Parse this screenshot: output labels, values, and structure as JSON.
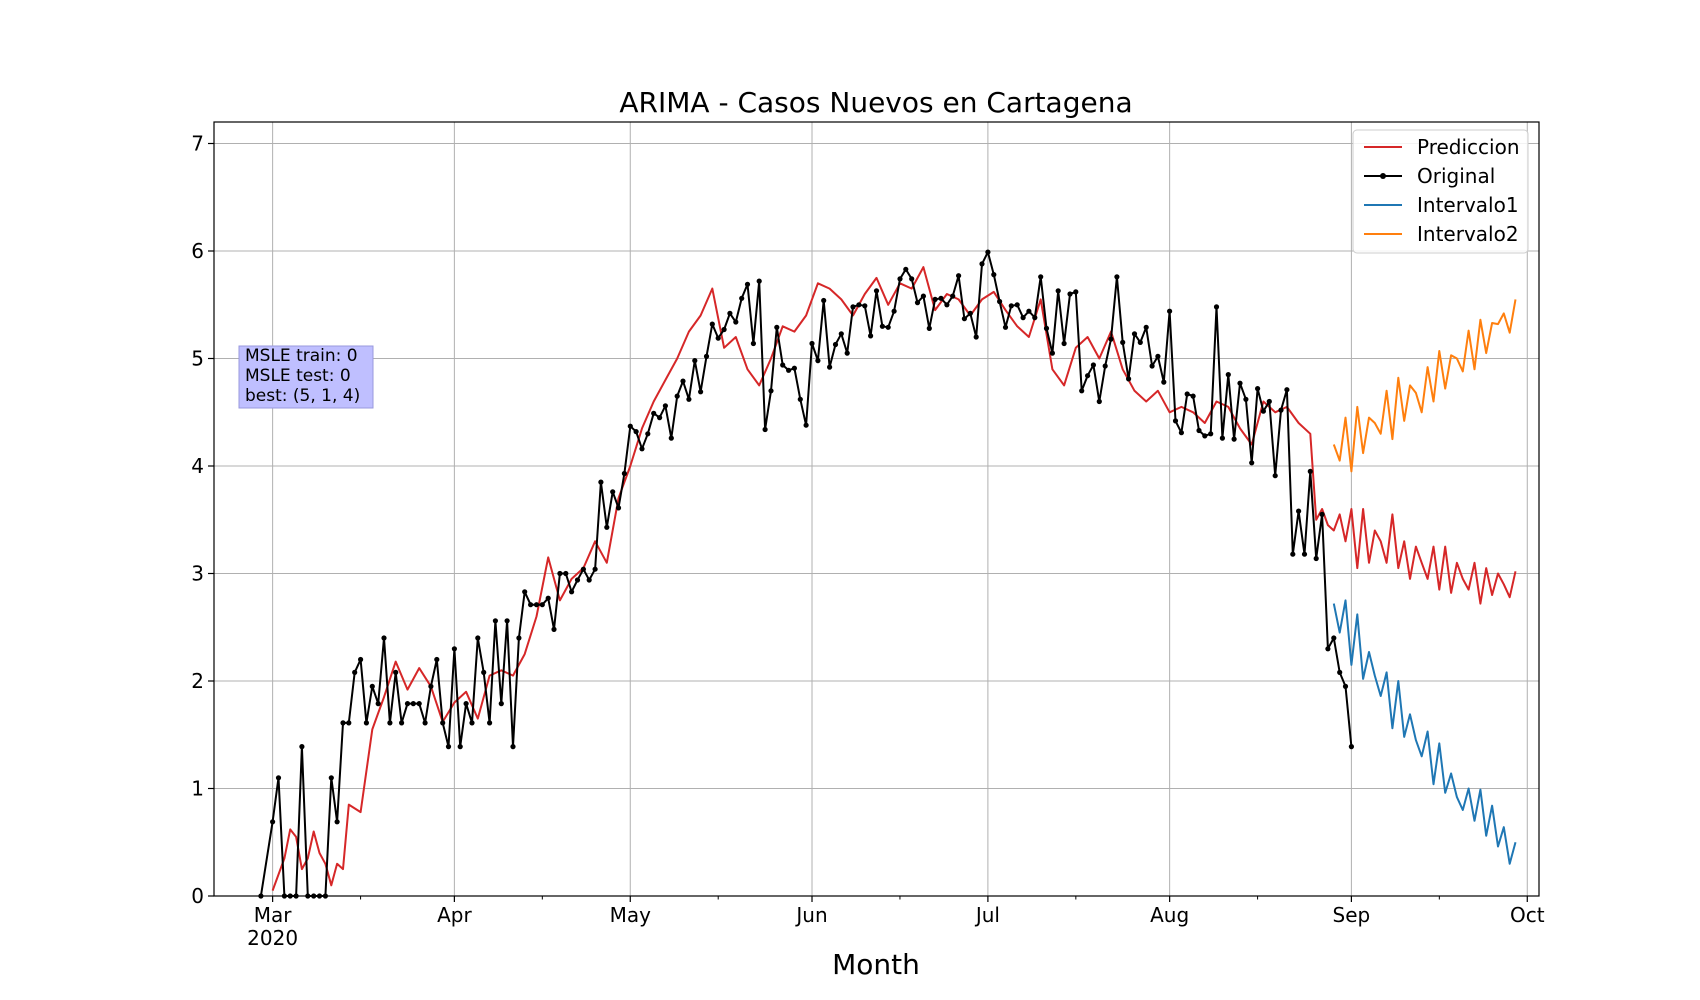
{
  "chart_data": {
    "type": "line",
    "title": "ARIMA - Casos Nuevos en Cartagena",
    "xlabel": "Month",
    "ylabel": "",
    "xlim": [
      "2020-02-20",
      "2020-10-03"
    ],
    "ylim": [
      0,
      7.2
    ],
    "yticks": [
      0,
      1,
      2,
      3,
      4,
      5,
      6,
      7
    ],
    "xticks": [
      {
        "date": "2020-03-01",
        "label": "Mar",
        "sublabel": "2020"
      },
      {
        "date": "2020-04-01",
        "label": "Apr",
        "sublabel": ""
      },
      {
        "date": "2020-05-01",
        "label": "May",
        "sublabel": ""
      },
      {
        "date": "2020-06-01",
        "label": "Jun",
        "sublabel": ""
      },
      {
        "date": "2020-07-01",
        "label": "Jul",
        "sublabel": ""
      },
      {
        "date": "2020-08-01",
        "label": "Aug",
        "sublabel": ""
      },
      {
        "date": "2020-09-01",
        "label": "Sep",
        "sublabel": ""
      },
      {
        "date": "2020-10-01",
        "label": "Oct",
        "sublabel": ""
      }
    ],
    "grid": true,
    "legend_position": "top-right",
    "annotation": {
      "lines": [
        "MSLE train: 0",
        "MSLE test: 0",
        "best: (5, 1, 4)"
      ]
    },
    "series": [
      {
        "name": "Prediccion",
        "color": "#d62728",
        "marker": false,
        "x": [
          "2020-03-01",
          "2020-03-03",
          "2020-03-04",
          "2020-03-05",
          "2020-03-06",
          "2020-03-07",
          "2020-03-08",
          "2020-03-09",
          "2020-03-10",
          "2020-03-11",
          "2020-03-12",
          "2020-03-13",
          "2020-03-14",
          "2020-03-16",
          "2020-03-18",
          "2020-03-20",
          "2020-03-22",
          "2020-03-24",
          "2020-03-26",
          "2020-03-28",
          "2020-03-30",
          "2020-04-01",
          "2020-04-03",
          "2020-04-05",
          "2020-04-07",
          "2020-04-09",
          "2020-04-11",
          "2020-04-13",
          "2020-04-15",
          "2020-04-17",
          "2020-04-19",
          "2020-04-21",
          "2020-04-23",
          "2020-04-25",
          "2020-04-27",
          "2020-04-29",
          "2020-05-01",
          "2020-05-03",
          "2020-05-05",
          "2020-05-07",
          "2020-05-09",
          "2020-05-11",
          "2020-05-13",
          "2020-05-15",
          "2020-05-17",
          "2020-05-19",
          "2020-05-21",
          "2020-05-23",
          "2020-05-25",
          "2020-05-27",
          "2020-05-29",
          "2020-05-31",
          "2020-06-02",
          "2020-06-04",
          "2020-06-06",
          "2020-06-08",
          "2020-06-10",
          "2020-06-12",
          "2020-06-14",
          "2020-06-16",
          "2020-06-18",
          "2020-06-20",
          "2020-06-22",
          "2020-06-24",
          "2020-06-26",
          "2020-06-28",
          "2020-06-30",
          "2020-07-02",
          "2020-07-04",
          "2020-07-06",
          "2020-07-08",
          "2020-07-10",
          "2020-07-12",
          "2020-07-14",
          "2020-07-16",
          "2020-07-18",
          "2020-07-20",
          "2020-07-22",
          "2020-07-24",
          "2020-07-26",
          "2020-07-28",
          "2020-07-30",
          "2020-08-01",
          "2020-08-03",
          "2020-08-05",
          "2020-08-07",
          "2020-08-09",
          "2020-08-11",
          "2020-08-13",
          "2020-08-15",
          "2020-08-17",
          "2020-08-19",
          "2020-08-21",
          "2020-08-23",
          "2020-08-25",
          "2020-08-26",
          "2020-08-27",
          "2020-08-28",
          "2020-08-29",
          "2020-08-30",
          "2020-08-31",
          "2020-09-01",
          "2020-09-02",
          "2020-09-03",
          "2020-09-04",
          "2020-09-05",
          "2020-09-06",
          "2020-09-07",
          "2020-09-08",
          "2020-09-09",
          "2020-09-10",
          "2020-09-11",
          "2020-09-12",
          "2020-09-13",
          "2020-09-14",
          "2020-09-15",
          "2020-09-16",
          "2020-09-17",
          "2020-09-18",
          "2020-09-19",
          "2020-09-20",
          "2020-09-21",
          "2020-09-22",
          "2020-09-23",
          "2020-09-24",
          "2020-09-25",
          "2020-09-26",
          "2020-09-27",
          "2020-09-28",
          "2020-09-29"
        ],
        "y": [
          0.05,
          0.35,
          0.62,
          0.55,
          0.25,
          0.35,
          0.6,
          0.4,
          0.3,
          0.1,
          0.3,
          0.25,
          0.85,
          0.78,
          1.55,
          1.85,
          2.18,
          1.92,
          2.12,
          1.95,
          1.62,
          1.8,
          1.9,
          1.65,
          2.05,
          2.1,
          2.05,
          2.25,
          2.6,
          3.15,
          2.75,
          2.95,
          3.05,
          3.3,
          3.1,
          3.7,
          4.0,
          4.35,
          4.6,
          4.8,
          5.0,
          5.25,
          5.4,
          5.65,
          5.1,
          5.2,
          4.9,
          4.75,
          5.0,
          5.3,
          5.25,
          5.4,
          5.7,
          5.65,
          5.55,
          5.4,
          5.6,
          5.75,
          5.5,
          5.7,
          5.65,
          5.85,
          5.45,
          5.6,
          5.55,
          5.4,
          5.55,
          5.62,
          5.45,
          5.3,
          5.2,
          5.55,
          4.9,
          4.75,
          5.1,
          5.2,
          5.0,
          5.25,
          4.9,
          4.7,
          4.6,
          4.7,
          4.5,
          4.55,
          4.5,
          4.4,
          4.6,
          4.55,
          4.35,
          4.2,
          4.6,
          4.5,
          4.55,
          4.4,
          4.3,
          3.5,
          3.6,
          3.45,
          3.4,
          3.55,
          3.3,
          3.6,
          3.05,
          3.6,
          3.1,
          3.4,
          3.3,
          3.1,
          3.55,
          3.05,
          3.3,
          2.95,
          3.25,
          3.1,
          2.95,
          3.25,
          2.85,
          3.25,
          2.82,
          3.1,
          2.95,
          2.85,
          3.1,
          2.72,
          3.05,
          2.8,
          3.0,
          2.9,
          2.78,
          3.02
        ]
      },
      {
        "name": "Original",
        "color": "#000000",
        "marker": true,
        "x": [
          "2020-02-28",
          "2020-03-01",
          "2020-03-02",
          "2020-03-03",
          "2020-03-04",
          "2020-03-05",
          "2020-03-06",
          "2020-03-07",
          "2020-03-08",
          "2020-03-09",
          "2020-03-10",
          "2020-03-11",
          "2020-03-12",
          "2020-03-13",
          "2020-03-14",
          "2020-03-15",
          "2020-03-16",
          "2020-03-17",
          "2020-03-18",
          "2020-03-19",
          "2020-03-20",
          "2020-03-21",
          "2020-03-22",
          "2020-03-23",
          "2020-03-24",
          "2020-03-25",
          "2020-03-26",
          "2020-03-27",
          "2020-03-28",
          "2020-03-29",
          "2020-03-30",
          "2020-03-31",
          "2020-04-01",
          "2020-04-02",
          "2020-04-03",
          "2020-04-04",
          "2020-04-05",
          "2020-04-06",
          "2020-04-07",
          "2020-04-08",
          "2020-04-09",
          "2020-04-10",
          "2020-04-11",
          "2020-04-12",
          "2020-04-13",
          "2020-04-14",
          "2020-04-15",
          "2020-04-16",
          "2020-04-17",
          "2020-04-18",
          "2020-04-19",
          "2020-04-20",
          "2020-04-21",
          "2020-04-22",
          "2020-04-23",
          "2020-04-24",
          "2020-04-25",
          "2020-04-26",
          "2020-04-27",
          "2020-04-28",
          "2020-04-29",
          "2020-04-30",
          "2020-05-01",
          "2020-05-02",
          "2020-05-03",
          "2020-05-04",
          "2020-05-05",
          "2020-05-06",
          "2020-05-07",
          "2020-05-08",
          "2020-05-09",
          "2020-05-10",
          "2020-05-11",
          "2020-05-12",
          "2020-05-13",
          "2020-05-14",
          "2020-05-15",
          "2020-05-16",
          "2020-05-17",
          "2020-05-18",
          "2020-05-19",
          "2020-05-20",
          "2020-05-21",
          "2020-05-22",
          "2020-05-23",
          "2020-05-24",
          "2020-05-25",
          "2020-05-26",
          "2020-05-27",
          "2020-05-28",
          "2020-05-29",
          "2020-05-30",
          "2020-05-31",
          "2020-06-01",
          "2020-06-02",
          "2020-06-03",
          "2020-06-04",
          "2020-06-05",
          "2020-06-06",
          "2020-06-07",
          "2020-06-08",
          "2020-06-09",
          "2020-06-10",
          "2020-06-11",
          "2020-06-12",
          "2020-06-13",
          "2020-06-14",
          "2020-06-15",
          "2020-06-16",
          "2020-06-17",
          "2020-06-18",
          "2020-06-19",
          "2020-06-20",
          "2020-06-21",
          "2020-06-22",
          "2020-06-23",
          "2020-06-24",
          "2020-06-25",
          "2020-06-26",
          "2020-06-27",
          "2020-06-28",
          "2020-06-29",
          "2020-06-30",
          "2020-07-01",
          "2020-07-02",
          "2020-07-03",
          "2020-07-04",
          "2020-07-05",
          "2020-07-06",
          "2020-07-07",
          "2020-07-08",
          "2020-07-09",
          "2020-07-10",
          "2020-07-11",
          "2020-07-12",
          "2020-07-13",
          "2020-07-14",
          "2020-07-15",
          "2020-07-16",
          "2020-07-17",
          "2020-07-18",
          "2020-07-19",
          "2020-07-20",
          "2020-07-21",
          "2020-07-22",
          "2020-07-23",
          "2020-07-24",
          "2020-07-25",
          "2020-07-26",
          "2020-07-27",
          "2020-07-28",
          "2020-07-29",
          "2020-07-30",
          "2020-07-31",
          "2020-08-01",
          "2020-08-02",
          "2020-08-03",
          "2020-08-04",
          "2020-08-05",
          "2020-08-06",
          "2020-08-07",
          "2020-08-08",
          "2020-08-09",
          "2020-08-10",
          "2020-08-11",
          "2020-08-12",
          "2020-08-13",
          "2020-08-14",
          "2020-08-15",
          "2020-08-16",
          "2020-08-17",
          "2020-08-18",
          "2020-08-19",
          "2020-08-20",
          "2020-08-21",
          "2020-08-22",
          "2020-08-23",
          "2020-08-24",
          "2020-08-25",
          "2020-08-26",
          "2020-08-27",
          "2020-08-28",
          "2020-08-29",
          "2020-08-30",
          "2020-08-31",
          "2020-09-01"
        ],
        "y": [
          0.0,
          0.69,
          1.1,
          0.0,
          0.0,
          0.0,
          1.39,
          0.0,
          0.0,
          0.0,
          0.0,
          1.1,
          0.69,
          1.61,
          1.61,
          2.08,
          2.2,
          1.61,
          1.95,
          1.79,
          2.4,
          1.61,
          2.08,
          1.61,
          1.79,
          1.79,
          1.79,
          1.61,
          1.95,
          2.2,
          1.61,
          1.39,
          2.3,
          1.39,
          1.79,
          1.61,
          2.4,
          2.08,
          1.61,
          2.56,
          1.79,
          2.56,
          1.39,
          2.4,
          2.83,
          2.71,
          2.71,
          2.71,
          2.77,
          2.48,
          3.0,
          3.0,
          2.83,
          2.94,
          3.04,
          2.94,
          3.04,
          3.85,
          3.43,
          3.76,
          3.61,
          3.93,
          4.37,
          4.32,
          4.16,
          4.3,
          4.49,
          4.45,
          4.56,
          4.26,
          4.65,
          4.79,
          4.62,
          4.98,
          4.69,
          5.02,
          5.32,
          5.19,
          5.27,
          5.42,
          5.34,
          5.56,
          5.69,
          5.14,
          5.72,
          4.34,
          4.7,
          5.29,
          4.94,
          4.89,
          4.91,
          4.62,
          4.38,
          5.14,
          4.98,
          5.54,
          4.92,
          5.13,
          5.23,
          5.05,
          5.48,
          5.5,
          5.49,
          5.21,
          5.63,
          5.3,
          5.29,
          5.44,
          5.74,
          5.83,
          5.74,
          5.52,
          5.58,
          5.28,
          5.55,
          5.56,
          5.5,
          5.58,
          5.77,
          5.37,
          5.42,
          5.2,
          5.88,
          5.99,
          5.78,
          5.53,
          5.29,
          5.49,
          5.5,
          5.38,
          5.44,
          5.38,
          5.76,
          5.28,
          5.05,
          5.63,
          5.14,
          5.6,
          5.62,
          4.7,
          4.84,
          4.94,
          4.6,
          4.93,
          5.18,
          5.76,
          5.15,
          4.81,
          5.23,
          5.15,
          5.29,
          4.93,
          5.02,
          4.78,
          5.44,
          4.42,
          4.31,
          4.67,
          4.65,
          4.33,
          4.28,
          4.3,
          5.48,
          4.26,
          4.85,
          4.25,
          4.77,
          4.62,
          4.03,
          4.72,
          4.51,
          4.6,
          3.91,
          4.52,
          4.71,
          3.18,
          3.58,
          3.18,
          3.95,
          3.14,
          3.55,
          2.3,
          2.4,
          2.08,
          1.95,
          1.39
        ]
      },
      {
        "name": "Intervalo1",
        "color": "#1f77b4",
        "marker": false,
        "x": [
          "2020-08-29",
          "2020-08-30",
          "2020-08-31",
          "2020-09-01",
          "2020-09-02",
          "2020-09-03",
          "2020-09-04",
          "2020-09-05",
          "2020-09-06",
          "2020-09-07",
          "2020-09-08",
          "2020-09-09",
          "2020-09-10",
          "2020-09-11",
          "2020-09-12",
          "2020-09-13",
          "2020-09-14",
          "2020-09-15",
          "2020-09-16",
          "2020-09-17",
          "2020-09-18",
          "2020-09-19",
          "2020-09-20",
          "2020-09-21",
          "2020-09-22",
          "2020-09-23",
          "2020-09-24",
          "2020-09-25",
          "2020-09-26",
          "2020-09-27",
          "2020-09-28",
          "2020-09-29"
        ],
        "y": [
          2.72,
          2.45,
          2.75,
          2.15,
          2.62,
          2.02,
          2.27,
          2.05,
          1.86,
          2.08,
          1.56,
          2.0,
          1.48,
          1.69,
          1.45,
          1.3,
          1.53,
          1.04,
          1.42,
          0.96,
          1.14,
          0.92,
          0.8,
          1.0,
          0.7,
          0.99,
          0.56,
          0.84,
          0.46,
          0.64,
          0.3,
          0.5
        ]
      },
      {
        "name": "Intervalo2",
        "color": "#ff7f0e",
        "marker": false,
        "x": [
          "2020-08-29",
          "2020-08-30",
          "2020-08-31",
          "2020-09-01",
          "2020-09-02",
          "2020-09-03",
          "2020-09-04",
          "2020-09-05",
          "2020-09-06",
          "2020-09-07",
          "2020-09-08",
          "2020-09-09",
          "2020-09-10",
          "2020-09-11",
          "2020-09-12",
          "2020-09-13",
          "2020-09-14",
          "2020-09-15",
          "2020-09-16",
          "2020-09-17",
          "2020-09-18",
          "2020-09-19",
          "2020-09-20",
          "2020-09-21",
          "2020-09-22",
          "2020-09-23",
          "2020-09-24",
          "2020-09-25",
          "2020-09-26",
          "2020-09-27",
          "2020-09-28",
          "2020-09-29"
        ],
        "y": [
          4.2,
          4.05,
          4.45,
          3.95,
          4.55,
          4.12,
          4.45,
          4.4,
          4.3,
          4.7,
          4.25,
          4.82,
          4.42,
          4.75,
          4.68,
          4.5,
          4.92,
          4.6,
          5.07,
          4.72,
          5.03,
          5.0,
          4.88,
          5.26,
          4.9,
          5.36,
          5.05,
          5.33,
          5.32,
          5.42,
          5.24,
          5.55
        ]
      }
    ]
  }
}
